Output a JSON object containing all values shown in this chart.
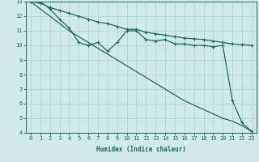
{
  "xlabel": "Humidex (Indice chaleur)",
  "bg_color": "#ceeaea",
  "grid_color": "#b8d8d8",
  "line_color": "#1a6b5a",
  "xlim": [
    -0.5,
    23.5
  ],
  "ylim": [
    4,
    13
  ],
  "yticks": [
    4,
    5,
    6,
    7,
    8,
    9,
    10,
    11,
    12,
    13
  ],
  "xticks": [
    0,
    1,
    2,
    3,
    4,
    5,
    6,
    7,
    8,
    9,
    10,
    11,
    12,
    13,
    14,
    15,
    16,
    17,
    18,
    19,
    20,
    21,
    22,
    23
  ],
  "line1_x": [
    0,
    1,
    2,
    3,
    4,
    5,
    6,
    7,
    8,
    9,
    10,
    11,
    12,
    13,
    14,
    15,
    16,
    17,
    18,
    19,
    20,
    21,
    22,
    23
  ],
  "line1_y": [
    13,
    12.9,
    12.6,
    12.4,
    12.2,
    12.0,
    11.8,
    11.6,
    11.5,
    11.3,
    11.1,
    11.1,
    10.9,
    10.8,
    10.7,
    10.6,
    10.5,
    10.45,
    10.4,
    10.3,
    10.2,
    10.1,
    10.05,
    10.0
  ],
  "line2_x": [
    0,
    1,
    2,
    3,
    4,
    5,
    6,
    7,
    8,
    9,
    10,
    11,
    12,
    13,
    14,
    15,
    16,
    17,
    18,
    19,
    20,
    21,
    22,
    23
  ],
  "line2_y": [
    13,
    13,
    12.5,
    11.8,
    11.2,
    10.2,
    10.0,
    10.2,
    9.6,
    10.2,
    11.0,
    11.0,
    10.4,
    10.3,
    10.4,
    10.1,
    10.1,
    10.0,
    10.0,
    9.9,
    10.0,
    6.2,
    4.7,
    4.1
  ],
  "line3_x": [
    0,
    1,
    2,
    3,
    4,
    5,
    6,
    7,
    8,
    9,
    10,
    11,
    12,
    13,
    14,
    15,
    16,
    17,
    18,
    19,
    20,
    21,
    22,
    23
  ],
  "line3_y": [
    13,
    12.5,
    12.0,
    11.5,
    11.0,
    10.6,
    10.2,
    9.8,
    9.4,
    9.0,
    8.6,
    8.2,
    7.8,
    7.4,
    7.0,
    6.6,
    6.2,
    5.9,
    5.6,
    5.3,
    5.0,
    4.8,
    4.5,
    4.1
  ]
}
